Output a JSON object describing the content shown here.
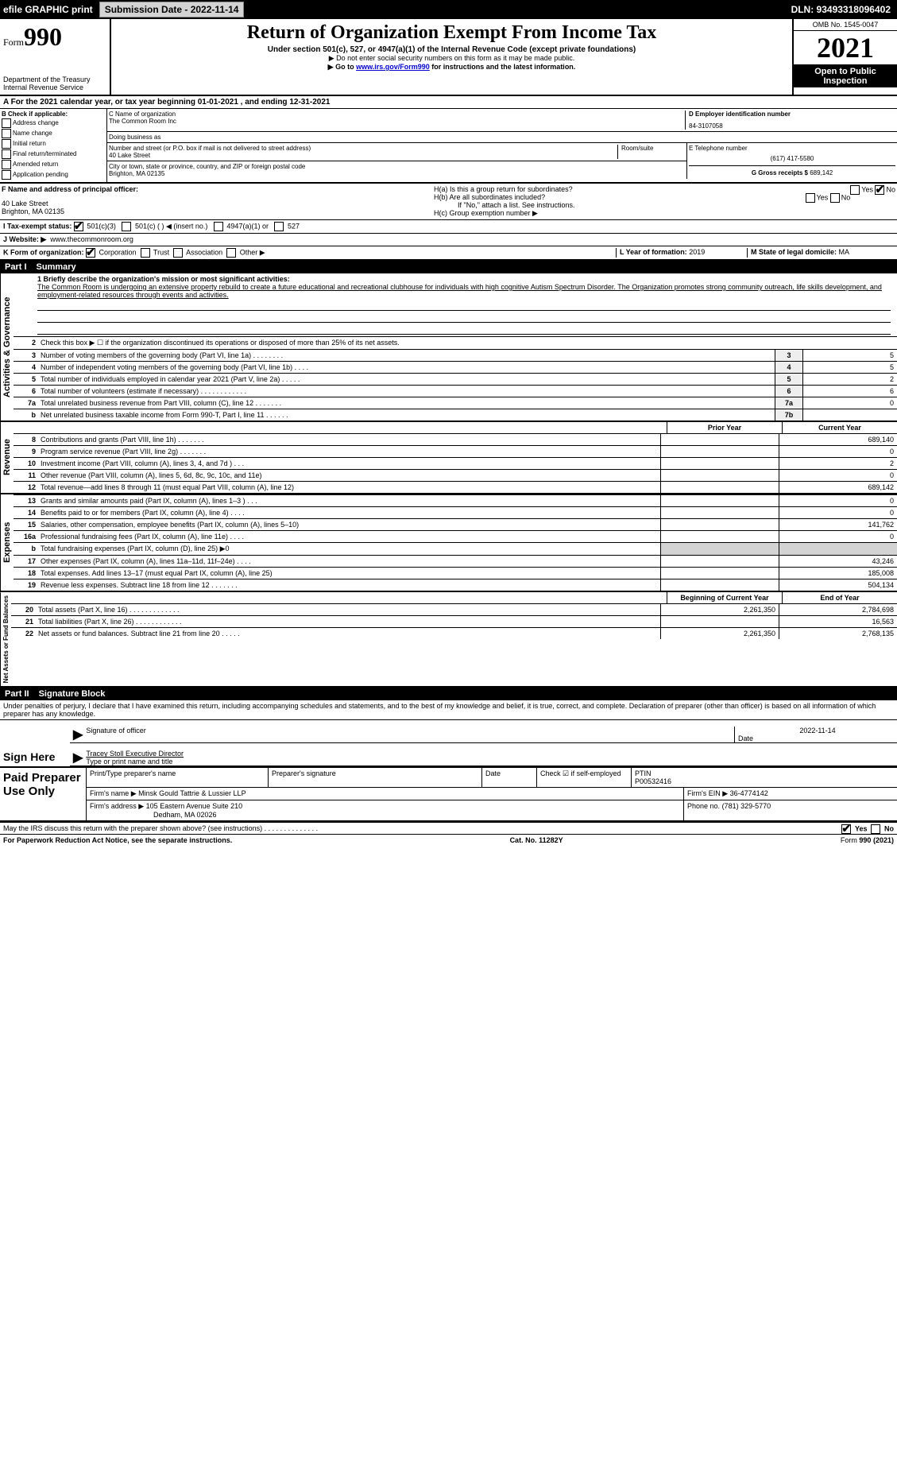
{
  "topbar": {
    "efile_label": "efile GRAPHIC print",
    "submission_label": "Submission Date - 2022-11-14",
    "dln": "DLN: 93493318096402"
  },
  "header": {
    "form_label": "Form",
    "form_number": "990",
    "title": "Return of Organization Exempt From Income Tax",
    "subtitle": "Under section 501(c), 527, or 4947(a)(1) of the Internal Revenue Code (except private foundations)",
    "note1": "▶ Do not enter social security numbers on this form as it may be made public.",
    "note2_pre": "▶ Go to ",
    "note2_link": "www.irs.gov/Form990",
    "note2_post": " for instructions and the latest information.",
    "dept": "Department of the Treasury\nInternal Revenue Service",
    "omb": "OMB No. 1545-0047",
    "year": "2021",
    "open_public": "Open to Public Inspection"
  },
  "row_a": "A For the 2021 calendar year, or tax year beginning 01-01-2021   , and ending 12-31-2021",
  "col_b": {
    "heading": "B Check if applicable:",
    "opts": [
      "Address change",
      "Name change",
      "Initial return",
      "Final return/terminated",
      "Amended return",
      "Application pending"
    ]
  },
  "c": {
    "label": "C Name of organization",
    "name": "The Common Room Inc",
    "dba_label": "Doing business as",
    "addr_label": "Number and street (or P.O. box if mail is not delivered to street address)",
    "room_label": "Room/suite",
    "addr": "40 Lake Street",
    "city_label": "City or town, state or province, country, and ZIP or foreign postal code",
    "city": "Brighton, MA  02135"
  },
  "d": {
    "label": "D Employer identification number",
    "val": "84-3107058"
  },
  "e": {
    "label": "E Telephone number",
    "val": "(617) 417-5580"
  },
  "g": {
    "label": "G Gross receipts $",
    "val": "689,142"
  },
  "f": {
    "label": "F  Name and address of principal officer:",
    "addr1": "40 Lake Street",
    "addr2": "Brighton, MA  02135"
  },
  "h": {
    "a_label": "H(a)  Is this a group return for subordinates?",
    "b_label": "H(b)  Are all subordinates included?",
    "b_note": "If \"No,\" attach a list. See instructions.",
    "c_label": "H(c)  Group exemption number ▶",
    "yes": "Yes",
    "no": "No"
  },
  "i": {
    "label": "I   Tax-exempt status:",
    "opts": [
      "501(c)(3)",
      "501(c) (   ) ◀ (insert no.)",
      "4947(a)(1) or",
      "527"
    ]
  },
  "j": {
    "label": "J   Website: ▶",
    "val": "www.thecommonroom.org"
  },
  "k": {
    "label": "K Form of organization:",
    "opts": [
      "Corporation",
      "Trust",
      "Association",
      "Other ▶"
    ]
  },
  "l": {
    "label": "L Year of formation:",
    "val": "2019"
  },
  "m": {
    "label": "M State of legal domicile:",
    "val": "MA"
  },
  "part1": {
    "num": "Part I",
    "title": "Summary"
  },
  "summary": {
    "line1_label": "1  Briefly describe the organization's mission or most significant activities:",
    "mission": "The Common Room is undergoing an extensive property rebuild to create a future educational and recreational clubhouse for individuals with high cognitive Autism Spectrum Disorder. The Organization promotes strong community outreach, life skills development, and employment-related resources through events and activities.",
    "line2": "Check this box ▶ ☐  if the organization discontinued its operations or disposed of more than 25% of its net assets.",
    "gov_label": "Activities & Governance",
    "rev_label": "Revenue",
    "exp_label": "Expenses",
    "net_label": "Net Assets or Fund Balances",
    "prior_year": "Prior Year",
    "current_year": "Current Year",
    "begin_year": "Beginning of Current Year",
    "end_year": "End of Year",
    "rows_gov": [
      {
        "n": "3",
        "lbl": "Number of voting members of the governing body (Part VI, line 1a)  .    .    .    .    .    .    .    .",
        "box": "3",
        "val": "5"
      },
      {
        "n": "4",
        "lbl": "Number of independent voting members of the governing body (Part VI, line 1b)  .    .    .    .",
        "box": "4",
        "val": "5"
      },
      {
        "n": "5",
        "lbl": "Total number of individuals employed in calendar year 2021 (Part V, line 2a)  .    .    .    .    .",
        "box": "5",
        "val": "2"
      },
      {
        "n": "6",
        "lbl": "Total number of volunteers (estimate if necessary)   .    .    .    .    .    .    .    .    .    .    .    .",
        "box": "6",
        "val": "6"
      },
      {
        "n": "7a",
        "lbl": "Total unrelated business revenue from Part VIII, column (C), line 12  .    .    .    .    .    .    .",
        "box": "7a",
        "val": "0"
      },
      {
        "n": "b",
        "lbl": "Net unrelated business taxable income from Form 990-T, Part I, line 11  .    .    .    .    .    .",
        "box": "7b",
        "val": ""
      }
    ],
    "rows_rev": [
      {
        "n": "8",
        "lbl": "Contributions and grants (Part VIII, line 1h)   .    .    .    .    .    .    .",
        "py": "",
        "cy": "689,140"
      },
      {
        "n": "9",
        "lbl": "Program service revenue (Part VIII, line 2g)   .    .    .    .    .    .    .",
        "py": "",
        "cy": "0"
      },
      {
        "n": "10",
        "lbl": "Investment income (Part VIII, column (A), lines 3, 4, and 7d )   .    .    .",
        "py": "",
        "cy": "2"
      },
      {
        "n": "11",
        "lbl": "Other revenue (Part VIII, column (A), lines 5, 6d, 8c, 9c, 10c, and 11e)",
        "py": "",
        "cy": "0"
      },
      {
        "n": "12",
        "lbl": "Total revenue—add lines 8 through 11 (must equal Part VIII, column (A), line 12)",
        "py": "",
        "cy": "689,142"
      }
    ],
    "rows_exp": [
      {
        "n": "13",
        "lbl": "Grants and similar amounts paid (Part IX, column (A), lines 1–3 )   .    .    .",
        "py": "",
        "cy": "0"
      },
      {
        "n": "14",
        "lbl": "Benefits paid to or for members (Part IX, column (A), line 4)   .    .    .    .",
        "py": "",
        "cy": "0"
      },
      {
        "n": "15",
        "lbl": "Salaries, other compensation, employee benefits (Part IX, column (A), lines 5–10)",
        "py": "",
        "cy": "141,762"
      },
      {
        "n": "16a",
        "lbl": "Professional fundraising fees (Part IX, column (A), line 11e)   .    .    .    .",
        "py": "",
        "cy": "0"
      },
      {
        "n": "b",
        "lbl": "Total fundraising expenses (Part IX, column (D), line 25) ▶0",
        "py": "",
        "cy": "",
        "shaded": true
      },
      {
        "n": "17",
        "lbl": "Other expenses (Part IX, column (A), lines 11a–11d, 11f–24e)   .    .    .    .",
        "py": "",
        "cy": "43,246"
      },
      {
        "n": "18",
        "lbl": "Total expenses. Add lines 13–17 (must equal Part IX, column (A), line 25)",
        "py": "",
        "cy": "185,008"
      },
      {
        "n": "19",
        "lbl": "Revenue less expenses. Subtract line 18 from line 12  .    .    .    .    .    .    .",
        "py": "",
        "cy": "504,134"
      }
    ],
    "rows_net": [
      {
        "n": "20",
        "lbl": "Total assets (Part X, line 16)  .    .    .    .    .    .    .    .    .    .    .    .    .",
        "py": "2,261,350",
        "cy": "2,784,698"
      },
      {
        "n": "21",
        "lbl": "Total liabilities (Part X, line 26)  .    .    .    .    .    .    .    .    .    .    .    .",
        "py": "",
        "cy": "16,563"
      },
      {
        "n": "22",
        "lbl": "Net assets or fund balances. Subtract line 21 from line 20  .    .    .    .    .",
        "py": "2,261,350",
        "cy": "2,768,135"
      }
    ]
  },
  "part2": {
    "num": "Part II",
    "title": "Signature Block"
  },
  "sig": {
    "declaration": "Under penalties of perjury, I declare that I have examined this return, including accompanying schedules and statements, and to the best of my knowledge and belief, it is true, correct, and complete. Declaration of preparer (other than officer) is based on all information of which preparer has any knowledge.",
    "sign_here": "Sign Here",
    "sig_officer": "Signature of officer",
    "date": "Date",
    "date_val": "2022-11-14",
    "name_title": "Tracey Stoll  Executive Director",
    "type_print": "Type or print name and title"
  },
  "paid": {
    "label": "Paid Preparer Use Only",
    "h1": "Print/Type preparer's name",
    "h2": "Preparer's signature",
    "h3": "Date",
    "h4": "Check ☑ if self-employed",
    "h5": "PTIN",
    "ptin": "P00532416",
    "firm_name_label": "Firm's name    ▶",
    "firm_name": "Minsk Gould Tattrie & Lussier LLP",
    "firm_ein_label": "Firm's EIN ▶",
    "firm_ein": "36-4774142",
    "firm_addr_label": "Firm's address ▶",
    "firm_addr1": "105 Eastern Avenue Suite 210",
    "firm_addr2": "Dedham, MA  02026",
    "phone_label": "Phone no.",
    "phone": "(781) 329-5770"
  },
  "discuss": {
    "label": "May the IRS discuss this return with the preparer shown above? (see instructions)   .    .    .    .    .    .    .    .    .    .    .    .    .    .",
    "yes": "Yes",
    "no": "No"
  },
  "footer": {
    "left": "For Paperwork Reduction Act Notice, see the separate instructions.",
    "mid": "Cat. No. 11282Y",
    "right": "Form 990 (2021)"
  }
}
